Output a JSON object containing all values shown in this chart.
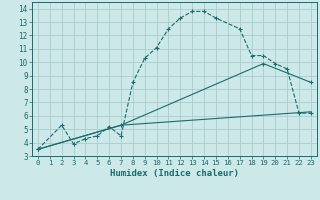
{
  "xlabel": "Humidex (Indice chaleur)",
  "xlim": [
    -0.5,
    23.5
  ],
  "ylim": [
    3,
    14.5
  ],
  "bg_color": "#cce8e8",
  "grid_color": "#aacccc",
  "line_color": "#1a6b6b",
  "line1_x": [
    0,
    2,
    3,
    4,
    5,
    6,
    7,
    8,
    9,
    10,
    11,
    12,
    13,
    14,
    15,
    17,
    18,
    19,
    20,
    21,
    22,
    23
  ],
  "line1_y": [
    3.5,
    5.3,
    3.9,
    4.3,
    4.5,
    5.2,
    4.5,
    8.5,
    10.3,
    11.1,
    12.5,
    13.3,
    13.8,
    13.8,
    13.3,
    12.5,
    10.5,
    10.5,
    9.9,
    9.5,
    6.2,
    6.2
  ],
  "line2_x": [
    0,
    7,
    23
  ],
  "line2_y": [
    3.5,
    5.3,
    6.3
  ],
  "line3_x": [
    0,
    7,
    19,
    23
  ],
  "line3_y": [
    3.5,
    5.3,
    9.9,
    8.5
  ],
  "xticks": [
    0,
    1,
    2,
    3,
    4,
    5,
    6,
    7,
    8,
    9,
    10,
    11,
    12,
    13,
    14,
    15,
    16,
    17,
    18,
    19,
    20,
    21,
    22,
    23
  ],
  "yticks": [
    3,
    4,
    5,
    6,
    7,
    8,
    9,
    10,
    11,
    12,
    13,
    14
  ]
}
